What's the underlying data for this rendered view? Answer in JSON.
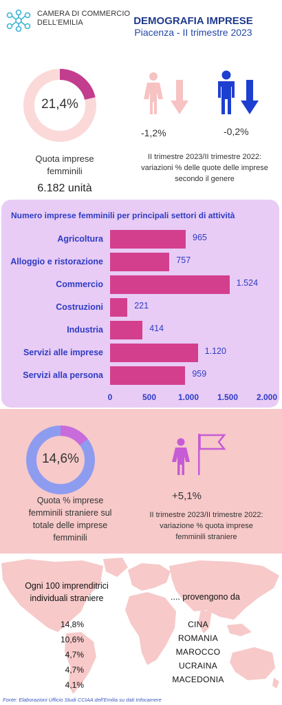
{
  "header": {
    "org_line1": "CAMERA DI COMMERCIO",
    "org_line2": "DELL'EMILIA",
    "title": "DEMOGRAFIA IMPRESE",
    "subtitle": "Piacenza - II trimestre 2023"
  },
  "women_share": {
    "value": 21.4,
    "label": "21,4%",
    "caption_line1": "Quota imprese",
    "caption_line2": "femminili",
    "units": "6.182 unità"
  },
  "gender_variation": {
    "female_change": "-1,2%",
    "male_change": "-0,2%",
    "caption_line1": "II trimestre 2023/II trimestre 2022:",
    "caption_line2": "variazioni % delle quote delle imprese",
    "caption_line3": "secondo il genere",
    "colors": {
      "female": "#f7c2c2",
      "male": "#1d3fcf"
    }
  },
  "chart_data": {
    "type": "bar",
    "orientation": "horizontal",
    "title": "Numero imprese femminili per principali settori di attività",
    "categories": [
      "Agricoltura",
      "Alloggio e ristorazione",
      "Commercio",
      "Costruzioni",
      "Industria",
      "Servizi alle imprese",
      "Servizi alla persona"
    ],
    "values": [
      965,
      757,
      1524,
      221,
      414,
      1120,
      959
    ],
    "value_labels": [
      "965",
      "757",
      "1.524",
      "221",
      "414",
      "1.120",
      "959"
    ],
    "xlim": [
      0,
      2000
    ],
    "ticks": [
      0,
      500,
      1000,
      1500,
      2000
    ],
    "tick_labels": [
      "0",
      "500",
      "1.000",
      "1.500",
      "2.000"
    ],
    "bar_color": "#d43f8d",
    "grid": false
  },
  "foreign_share": {
    "value": 14.6,
    "label": "14,6%",
    "caption_line1": "Quota  % imprese",
    "caption_line2": "femminili straniere sul",
    "caption_line3": "totale delle imprese",
    "caption_line4": "femminili",
    "change": "+5,1%",
    "change_caption_line1": "II trimestre 2023/II trimestre 2022:",
    "change_caption_line2": "variazione % quota imprese",
    "change_caption_line3": "femminili straniere"
  },
  "origins": {
    "caption_line1": "Ogni 100 imprenditrici",
    "caption_line2": "individuali straniere",
    "from_text": ".... provengono da",
    "items": [
      {
        "share": "14,8%",
        "country": "CINA"
      },
      {
        "share": "10,6%",
        "country": "ROMANIA"
      },
      {
        "share": "4,7%",
        "country": "MAROCCO"
      },
      {
        "share": "4,7%",
        "country": "UCRAINA"
      },
      {
        "share": "4,1%",
        "country": "MACEDONIA"
      }
    ]
  },
  "source": "Fonte: Elaborazioni Ufficio Studi CCIAA dell'Emilia su dati Infocamere"
}
